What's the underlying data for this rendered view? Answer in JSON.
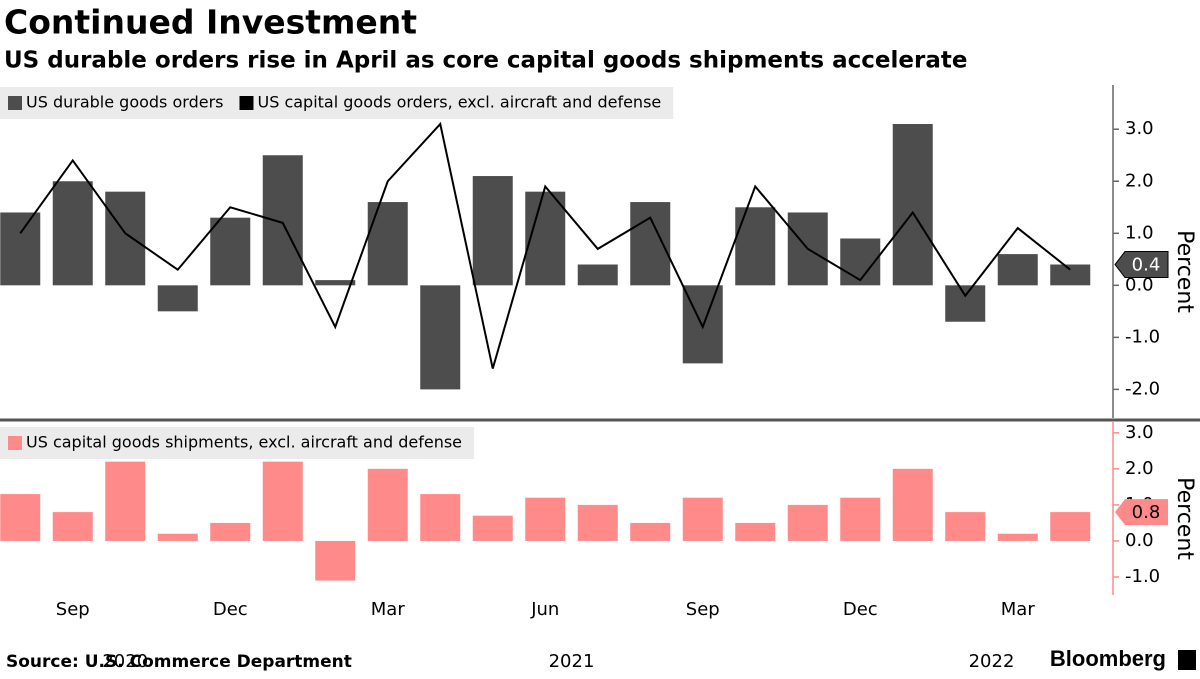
{
  "title": "Continued Investment",
  "subtitle": "US durable orders rise in April as core capital goods shipments accelerate",
  "footer": {
    "source": "Source: U.S. Commerce Department",
    "brand": "Bloomberg"
  },
  "chart_data": [
    {
      "type": "combo",
      "y_label": "Percent",
      "ylim": [
        -2.55,
        3.85
      ],
      "yticks": [
        {
          "value": -2,
          "label": "-2.0"
        },
        {
          "value": -1,
          "label": "-1.0"
        },
        {
          "value": 0,
          "label": "0.0"
        },
        {
          "value": 1,
          "label": "1.0"
        },
        {
          "value": 2,
          "label": "2.0"
        },
        {
          "value": 3,
          "label": "3.0"
        }
      ],
      "grid": false,
      "series": [
        {
          "name": "US durable goods orders",
          "type": "bar",
          "color": "#4d4d4d",
          "values": [
            1.4,
            2.0,
            1.8,
            -0.5,
            1.3,
            2.5,
            0.1,
            1.6,
            -2.0,
            2.1,
            1.8,
            0.4,
            1.6,
            -1.5,
            1.5,
            1.4,
            0.9,
            3.1,
            -0.7,
            0.6,
            0.4
          ]
        },
        {
          "name": "US capital goods orders, excl. aircraft and defense",
          "type": "line",
          "color": "#000000",
          "values": [
            1.0,
            2.4,
            1.0,
            0.3,
            1.5,
            1.2,
            -0.8,
            2.0,
            3.1,
            -1.6,
            1.9,
            0.7,
            1.3,
            -0.8,
            1.9,
            0.7,
            0.1,
            1.4,
            -0.2,
            1.1,
            0.3
          ]
        }
      ]
    },
    {
      "type": "bar",
      "y_label": "Percent",
      "ylim": [
        -1.5,
        3.3
      ],
      "yticks": [
        {
          "value": -1,
          "label": "-1.0"
        },
        {
          "value": 0,
          "label": "0.0"
        },
        {
          "value": 1,
          "label": "1.0"
        },
        {
          "value": 2,
          "label": "2.0"
        },
        {
          "value": 3,
          "label": "3.0"
        }
      ],
      "grid": false,
      "categories": [
        null,
        "Sep",
        null,
        null,
        "Dec",
        null,
        null,
        "Mar",
        null,
        null,
        "Jun",
        null,
        null,
        "Sep",
        null,
        null,
        "Dec",
        null,
        null,
        "Mar",
        null
      ],
      "years": [
        {
          "label": "2020",
          "from": 0,
          "to": 4
        },
        {
          "label": "2021",
          "from": 5,
          "to": 16
        },
        {
          "label": "2022",
          "from": 17,
          "to": 20
        }
      ],
      "series": [
        {
          "name": "US capital goods shipments, excl. aircraft and defense",
          "type": "bar",
          "color": "#ff8a8a",
          "values": [
            1.3,
            0.8,
            2.2,
            0.2,
            0.5,
            2.2,
            -1.1,
            2.0,
            1.3,
            0.7,
            1.2,
            1.0,
            0.5,
            1.2,
            0.5,
            1.0,
            1.2,
            2.0,
            0.8,
            0.2,
            0.8
          ]
        }
      ]
    }
  ]
}
